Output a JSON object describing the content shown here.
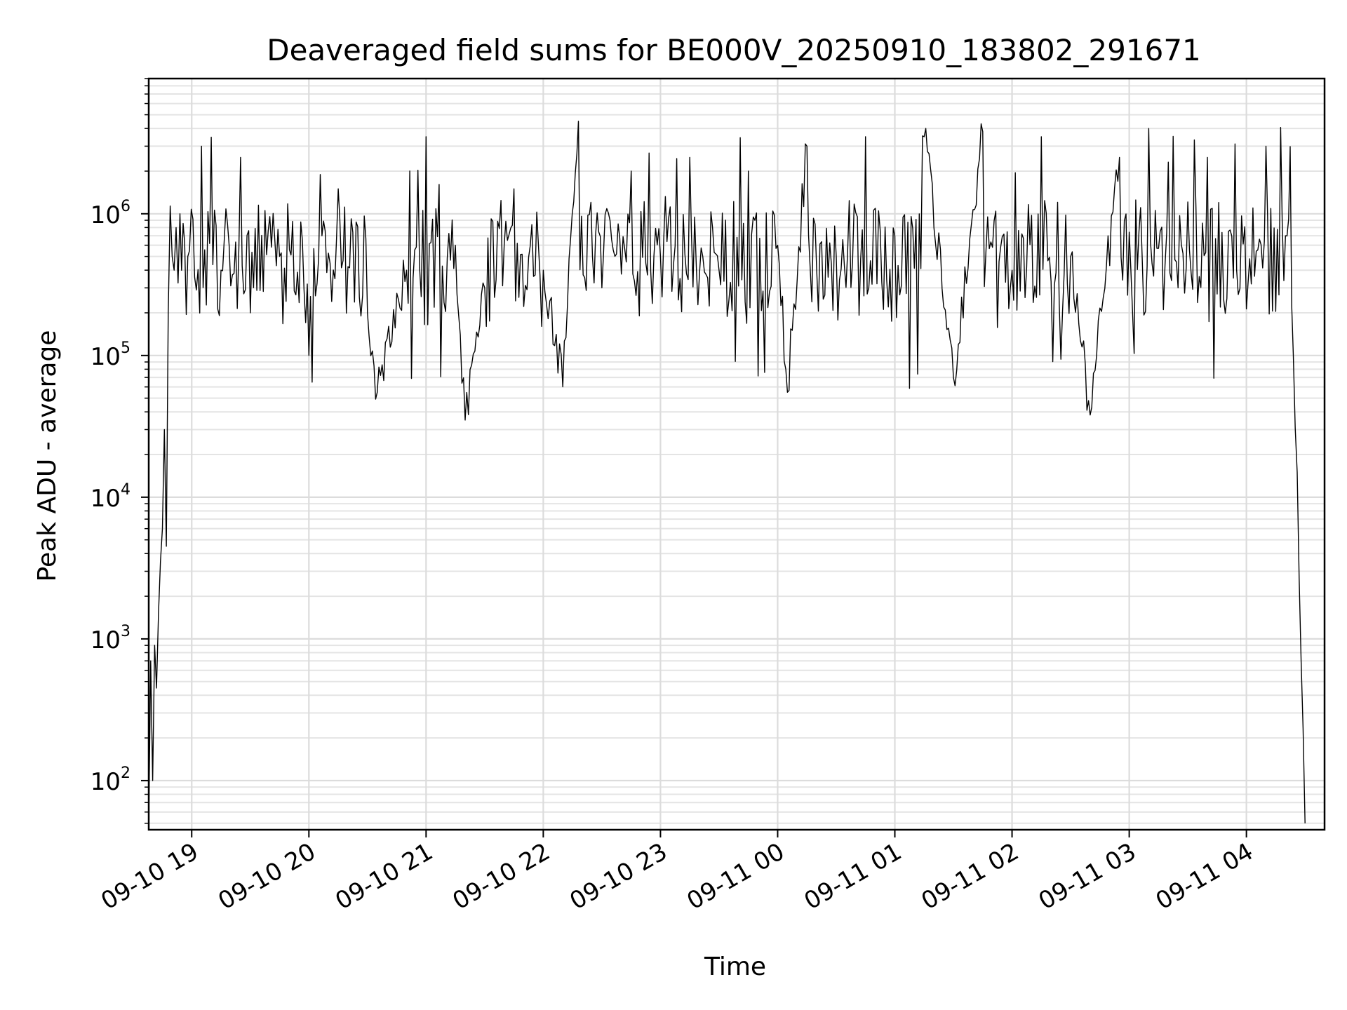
{
  "chart_data": {
    "type": "line",
    "title": "Deaveraged field sums for BE000V_20250910_183802_291671",
    "xlabel": "Time",
    "ylabel": "Peak ADU - average",
    "yscale": "log",
    "ylim": [
      45,
      9000000
    ],
    "xlim": [
      "2025-09-10 18:38",
      "2025-09-11 04:40"
    ],
    "x_ticks": [
      "09-10 19",
      "09-10 20",
      "09-10 21",
      "09-10 22",
      "09-10 23",
      "09-11 00",
      "09-11 01",
      "09-11 02",
      "09-11 03",
      "09-11 04"
    ],
    "y_ticks": [
      {
        "base": "10",
        "exp": "2",
        "value": 100
      },
      {
        "base": "10",
        "exp": "3",
        "value": 1000
      },
      {
        "base": "10",
        "exp": "4",
        "value": 10000
      },
      {
        "base": "10",
        "exp": "5",
        "value": 100000
      },
      {
        "base": "10",
        "exp": "6",
        "value": 1000000
      }
    ],
    "grid": "major and minor",
    "line_color": "#000000",
    "series": [
      {
        "points": [
          [
            "2025-09-10 18:38",
            50
          ],
          [
            "2025-09-10 18:39",
            700
          ],
          [
            "2025-09-10 18:40",
            100
          ],
          [
            "2025-09-10 18:41",
            900
          ],
          [
            "2025-09-10 18:42",
            450
          ],
          [
            "2025-09-10 18:43",
            1500
          ],
          [
            "2025-09-10 18:44",
            3500
          ],
          [
            "2025-09-10 18:45",
            6000
          ],
          [
            "2025-09-10 18:46",
            30000
          ],
          [
            "2025-09-10 18:47",
            4500
          ],
          [
            "2025-09-10 18:48",
            200000
          ],
          [
            "2025-09-10 18:50",
            500000
          ],
          [
            "2025-09-10 18:52",
            800000
          ],
          [
            "2025-09-10 18:54",
            1000000
          ],
          [
            "2025-09-10 18:58",
            500000
          ],
          [
            "2025-09-10 19:05",
            3000000
          ],
          [
            "2025-09-10 19:15",
            400000
          ],
          [
            "2025-09-10 19:25",
            2500000
          ],
          [
            "2025-09-10 19:30",
            200000
          ],
          [
            "2025-09-10 19:45",
            500000
          ],
          [
            "2025-09-10 20:00",
            100000
          ],
          [
            "2025-09-10 20:15",
            1500000
          ],
          [
            "2025-09-10 20:30",
            200000
          ],
          [
            "2025-09-10 20:35",
            55000
          ],
          [
            "2025-09-10 20:50",
            400000
          ],
          [
            "2025-09-10 21:00",
            3500000
          ],
          [
            "2025-09-10 21:15",
            600000
          ],
          [
            "2025-09-10 21:20",
            35000
          ],
          [
            "2025-09-10 21:30",
            300000
          ],
          [
            "2025-09-10 21:45",
            1500000
          ],
          [
            "2025-09-10 22:00",
            400000
          ],
          [
            "2025-09-10 22:10",
            60000
          ],
          [
            "2025-09-10 22:18",
            4500000
          ],
          [
            "2025-09-10 22:30",
            300000
          ],
          [
            "2025-09-10 22:45",
            2000000
          ],
          [
            "2025-09-10 23:00",
            500000
          ],
          [
            "2025-09-10 23:15",
            2500000
          ],
          [
            "2025-09-10 23:30",
            400000
          ],
          [
            "2025-09-10 23:45",
            2000000
          ],
          [
            "2025-09-11 00:00",
            600000
          ],
          [
            "2025-09-11 00:05",
            55000
          ],
          [
            "2025-09-11 00:15",
            3000000
          ],
          [
            "2025-09-11 00:30",
            500000
          ],
          [
            "2025-09-11 00:45",
            3500000
          ],
          [
            "2025-09-11 01:00",
            700000
          ],
          [
            "2025-09-11 01:15",
            3500000
          ],
          [
            "2025-09-11 01:30",
            70000
          ],
          [
            "2025-09-11 01:45",
            3800000
          ],
          [
            "2025-09-11 02:00",
            400000
          ],
          [
            "2025-09-11 02:15",
            3500000
          ],
          [
            "2025-09-11 02:30",
            500000
          ],
          [
            "2025-09-11 02:40",
            38000
          ],
          [
            "2025-09-11 02:55",
            2500000
          ],
          [
            "2025-09-11 03:10",
            4000000
          ],
          [
            "2025-09-11 03:25",
            300000
          ],
          [
            "2025-09-11 03:40",
            2500000
          ],
          [
            "2025-09-11 03:55",
            400000
          ],
          [
            "2025-09-11 04:10",
            3000000
          ],
          [
            "2025-09-11 04:20",
            700000
          ],
          [
            "2025-09-11 04:24",
            100000
          ],
          [
            "2025-09-11 04:26",
            15000
          ],
          [
            "2025-09-11 04:28",
            700
          ],
          [
            "2025-09-11 04:30",
            50
          ]
        ]
      }
    ]
  }
}
